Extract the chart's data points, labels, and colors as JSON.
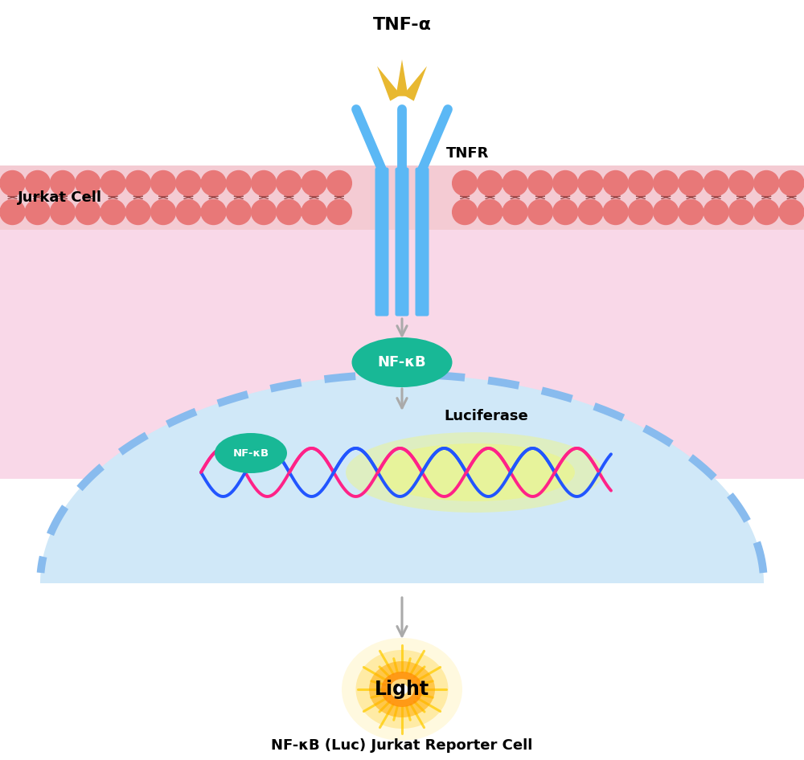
{
  "background_color": "#ffffff",
  "cell_bg_color": "#f9d8e8",
  "nucleus_bg_color": "#d0e8f8",
  "membrane_head_color": "#e87878",
  "membrane_tail_color": "#994444",
  "receptor_color": "#5bb8f5",
  "tnf_color": "#e8b830",
  "nfkb_color": "#18b896",
  "arrow_color": "#aaaaaa",
  "tnf_alpha_text": "TNF-α",
  "tnfr_text": "TNFR",
  "nfkb_text": "NF-κB",
  "nfkb2_text": "NF-κB",
  "luciferase_text": "Luciferase",
  "light_text": "Light",
  "jurkat_text": "Jurkat Cell",
  "reporter_text": "NF-κB (Luc) Jurkat Reporter Cell",
  "dna_pink": "#ff2288",
  "dna_blue": "#2255ff",
  "nucleus_border_color": "#88bbee",
  "fig_width": 10.0,
  "fig_height": 9.46
}
